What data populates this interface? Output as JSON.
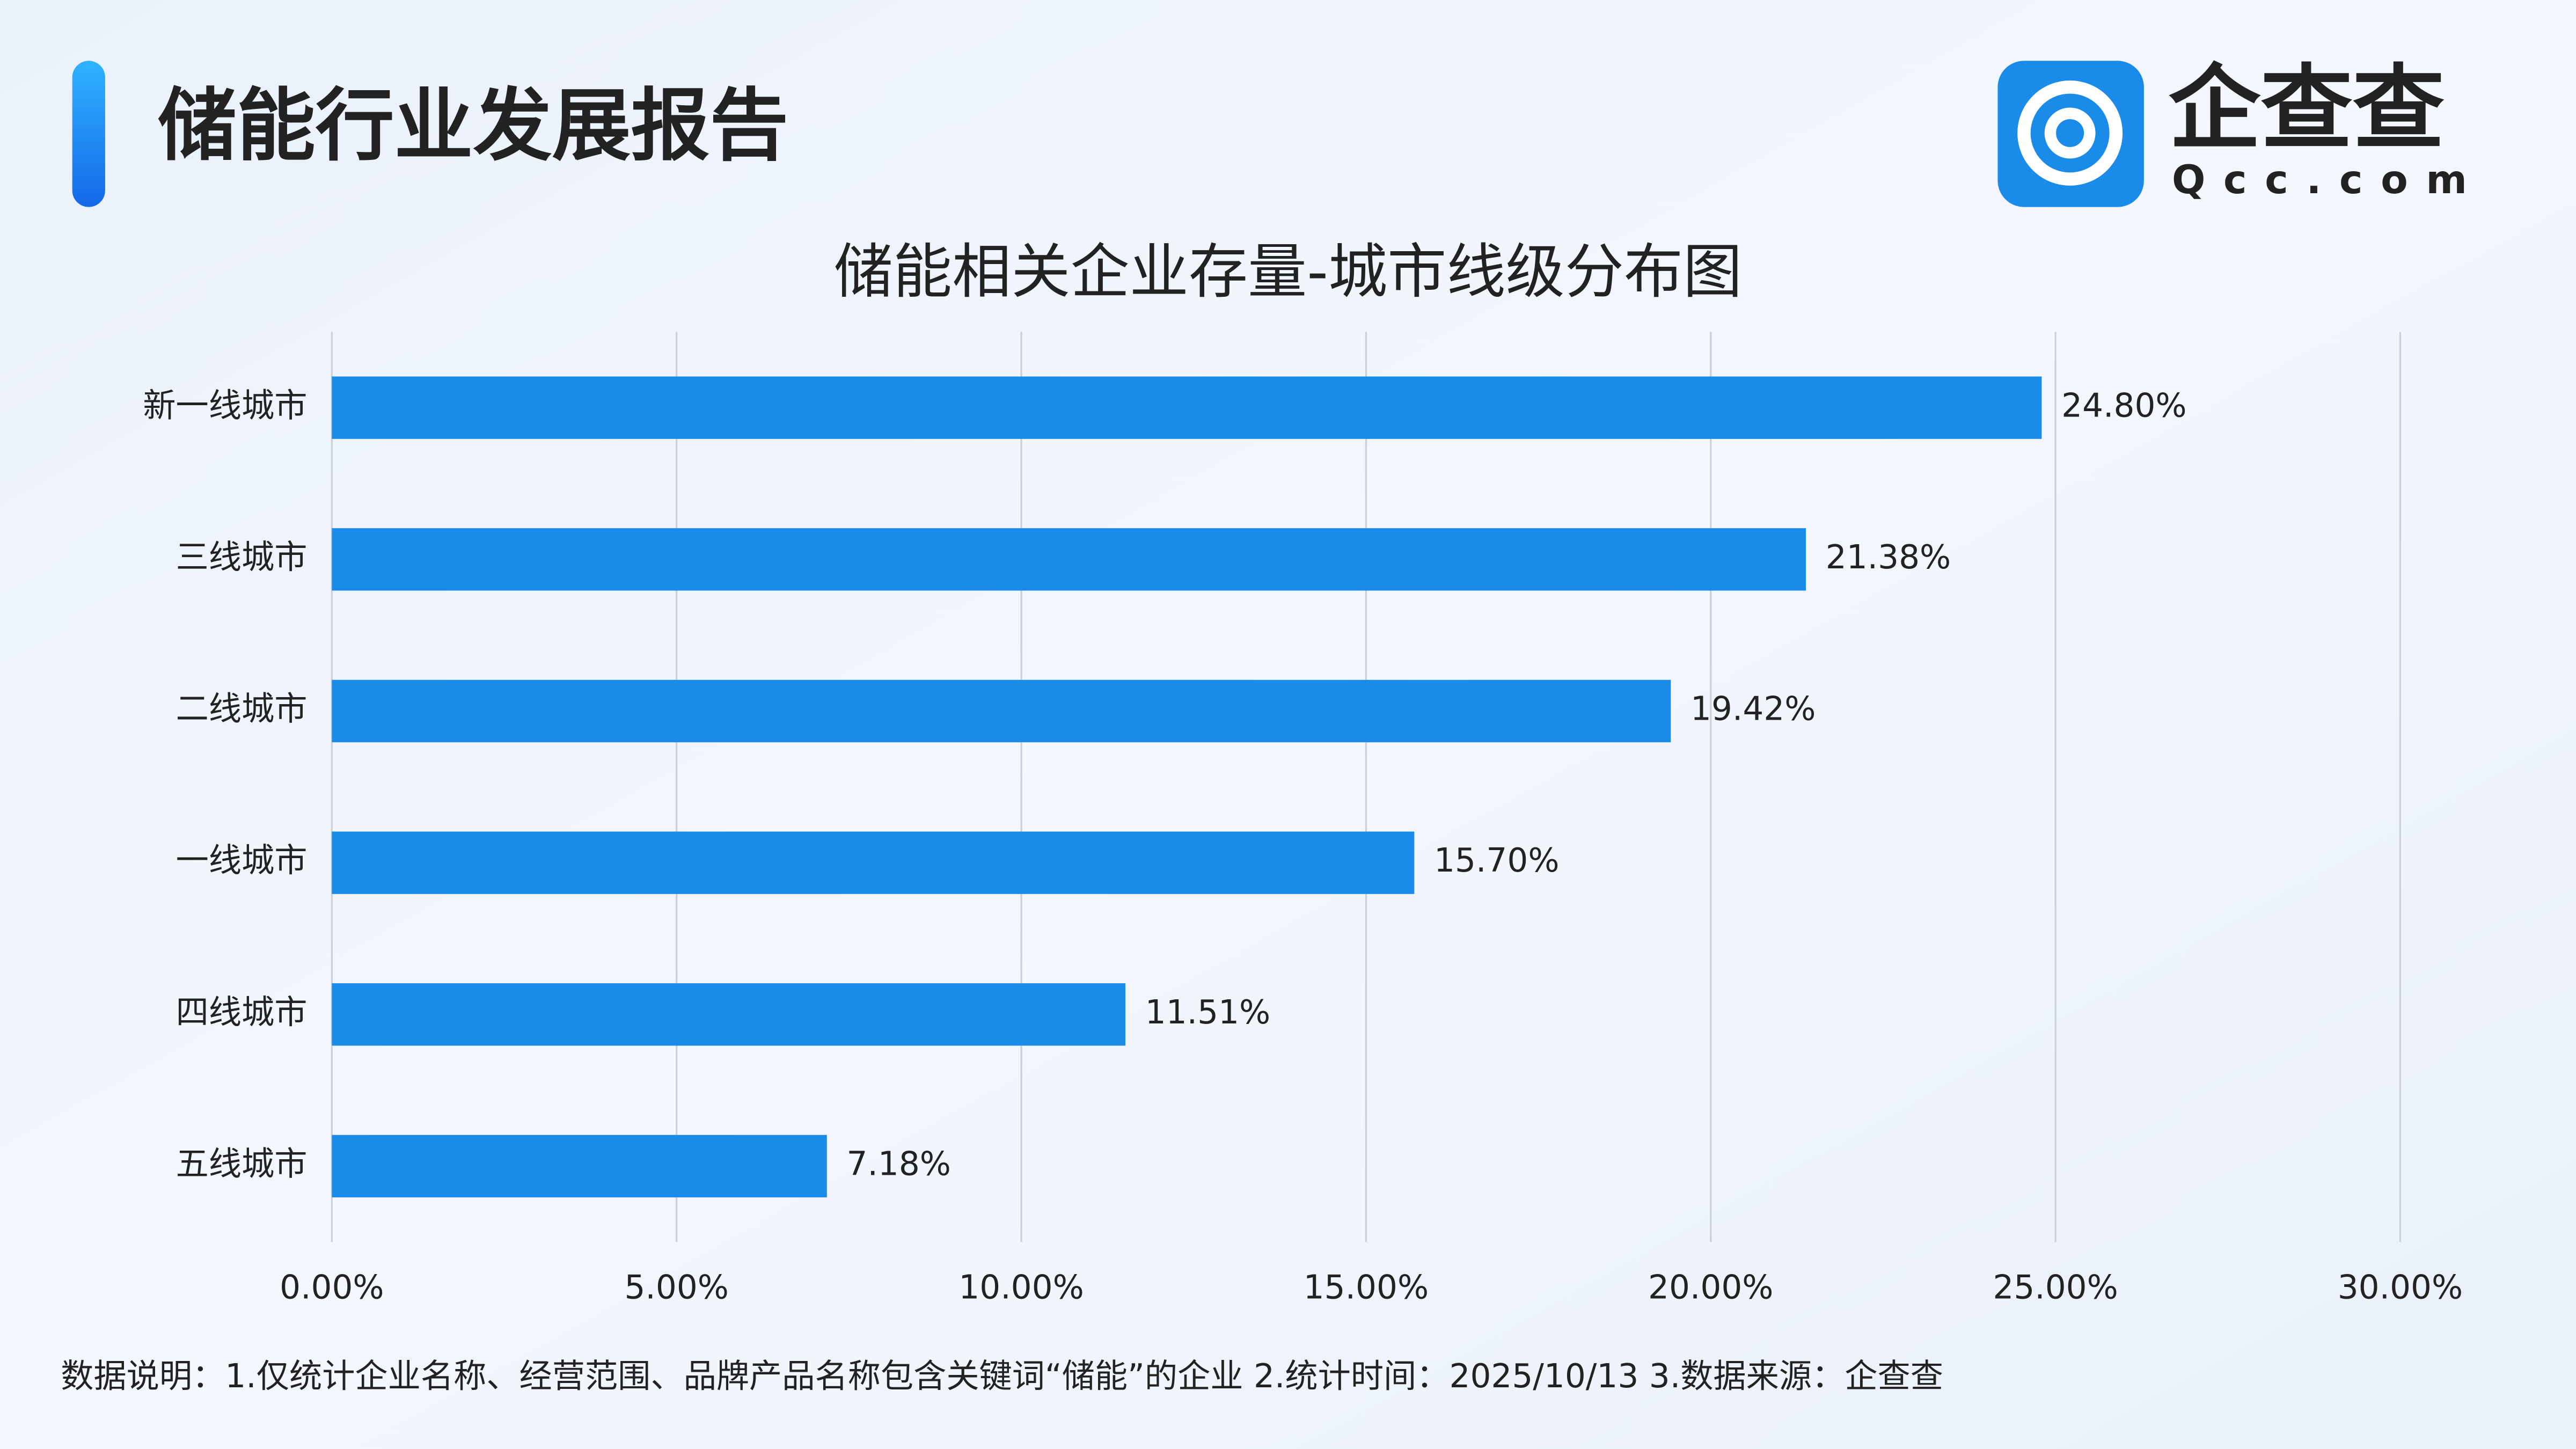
{
  "header": {
    "title": "储能行业发展报告",
    "logo_name": "企查查",
    "logo_domain": "Qcc.com"
  },
  "chart_data": {
    "type": "bar",
    "title": "储能相关企业存量-城市线级分布图",
    "categories": [
      "新一线城市",
      "三线城市",
      "二线城市",
      "一线城市",
      "四线城市",
      "五线城市"
    ],
    "values": [
      24.8,
      21.38,
      19.42,
      15.7,
      11.51,
      7.18
    ],
    "value_labels": [
      "24.80%",
      "21.38%",
      "19.42%",
      "15.70%",
      "11.51%",
      "7.18%"
    ],
    "color": "#1a8be8",
    "xlim": [
      0,
      30
    ],
    "xticks": [
      {
        "value": 0,
        "label": "0.00%"
      },
      {
        "value": 5,
        "label": "5.00%"
      },
      {
        "value": 10,
        "label": "10.00%"
      },
      {
        "value": 15,
        "label": "15.00%"
      },
      {
        "value": 20,
        "label": "20.00%"
      },
      {
        "value": 25,
        "label": "25.00%"
      },
      {
        "value": 30,
        "label": "30.00%"
      }
    ],
    "grid": true
  },
  "footnote": "数据说明：1.仅统计企业名称、经营范围、品牌产品名称包含关键词“储能”的企业   2.统计时间：2025/10/13    3.数据来源：企查查"
}
